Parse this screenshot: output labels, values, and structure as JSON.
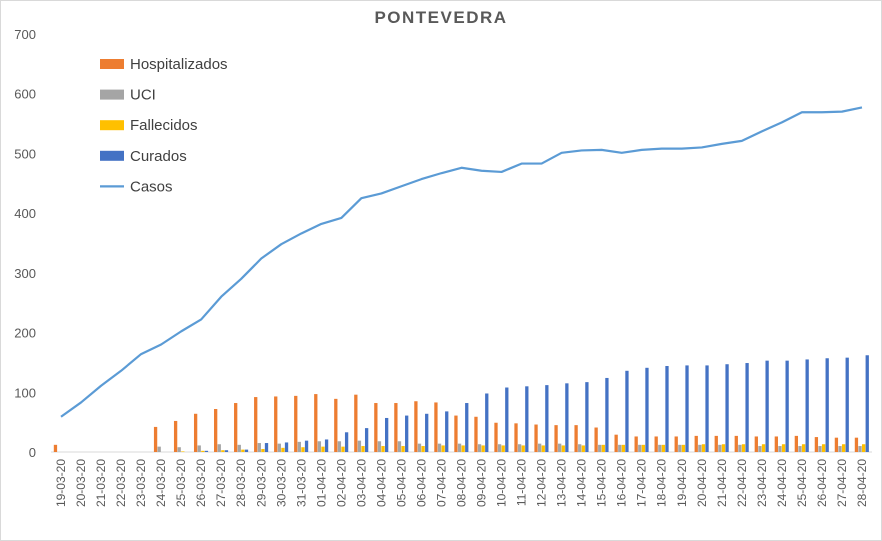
{
  "chart_data": {
    "type": "bar",
    "title": "PONTEVEDRA",
    "xlabel": "",
    "ylabel": "",
    "ylim": [
      0,
      700
    ],
    "yticks": [
      0,
      100,
      200,
      300,
      400,
      500,
      600,
      700
    ],
    "grid": false,
    "legend_position": "top-left",
    "categories": [
      "19-03-20",
      "20-03-20",
      "21-03-20",
      "22-03-20",
      "23-03-20",
      "24-03-20",
      "25-03-20",
      "26-03-20",
      "27-03-20",
      "28-03-20",
      "29-03-20",
      "30-03-20",
      "31-03-20",
      "01-04-20",
      "02-04-20",
      "03-04-20",
      "04-04-20",
      "05-04-20",
      "06-04-20",
      "07-04-20",
      "08-04-20",
      "09-04-20",
      "10-04-20",
      "11-04-20",
      "12-04-20",
      "13-04-20",
      "14-04-20",
      "15-04-20",
      "16-04-20",
      "17-04-20",
      "18-04-20",
      "19-04-20",
      "20-04-20",
      "21-04-20",
      "22-04-20",
      "23-04-20",
      "24-04-20",
      "25-04-20",
      "26-04-20",
      "27-04-20",
      "28-04-20"
    ],
    "series": [
      {
        "name": "Hospitalizados",
        "kind": "bar",
        "color": "#ED7D31",
        "values": [
          12,
          0,
          0,
          0,
          0,
          42,
          52,
          64,
          72,
          82,
          92,
          93,
          94,
          97,
          89,
          96,
          82,
          82,
          85,
          83,
          61,
          59,
          49,
          48,
          46,
          45,
          45,
          41,
          29,
          26,
          26,
          26,
          27,
          27,
          27,
          26,
          26,
          27,
          25,
          24,
          24
        ]
      },
      {
        "name": "UCI",
        "kind": "bar",
        "color": "#A5A5A5",
        "values": [
          0,
          0,
          0,
          0,
          0,
          9,
          8,
          11,
          13,
          12,
          15,
          14,
          17,
          18,
          18,
          19,
          18,
          18,
          14,
          14,
          14,
          13,
          13,
          13,
          14,
          14,
          13,
          12,
          12,
          12,
          12,
          12,
          12,
          12,
          12,
          10,
          10,
          10,
          10,
          10,
          10
        ]
      },
      {
        "name": "Fallecidos",
        "kind": "bar",
        "color": "#FFC000",
        "values": [
          0,
          0,
          0,
          0,
          0,
          0,
          1,
          2,
          3,
          4,
          5,
          7,
          8,
          9,
          9,
          10,
          10,
          10,
          10,
          11,
          11,
          11,
          11,
          11,
          11,
          11,
          11,
          12,
          12,
          12,
          12,
          12,
          13,
          13,
          13,
          13,
          13,
          13,
          13,
          13,
          13
        ]
      },
      {
        "name": "Curados",
        "kind": "bar",
        "color": "#4472C4",
        "values": [
          0,
          0,
          0,
          0,
          0,
          0,
          0,
          2,
          3,
          4,
          15,
          16,
          19,
          21,
          33,
          40,
          57,
          61,
          64,
          68,
          82,
          98,
          108,
          110,
          112,
          115,
          117,
          124,
          136,
          141,
          144,
          145,
          145,
          147,
          149,
          153,
          153,
          155,
          157,
          158,
          162
        ]
      },
      {
        "name": "Casos",
        "kind": "line",
        "color": "#5B9BD5",
        "values": [
          59,
          83,
          111,
          136,
          164,
          180,
          202,
          222,
          260,
          290,
          324,
          348,
          366,
          382,
          392,
          425,
          433,
          445,
          457,
          467,
          476,
          471,
          469,
          483,
          483,
          501,
          505,
          506,
          501,
          506,
          508,
          508,
          510,
          516,
          521,
          537,
          552,
          569,
          569,
          570,
          577
        ]
      }
    ]
  }
}
